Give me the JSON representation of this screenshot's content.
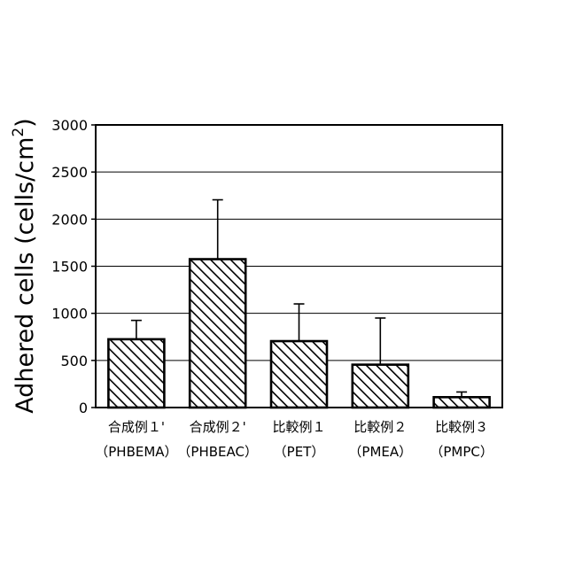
{
  "chart_data": {
    "type": "bar",
    "title": "",
    "xlabel": "",
    "ylabel": "Adhered cells (cells/cm²)",
    "ylabel_main": "Adhered cells (cells/cm",
    "ylabel_sup": "2",
    "ylabel_tail": ")",
    "ylim": [
      0,
      3000
    ],
    "yticks": [
      "0",
      "500",
      "1000",
      "1500",
      "2000",
      "2500",
      "3000"
    ],
    "ytick_values": [
      0,
      500,
      1000,
      1500,
      2000,
      2500,
      3000
    ],
    "grid": true,
    "categories": [
      {
        "line1": "合成例１'",
        "line2": "（PHBEMA）"
      },
      {
        "line1": "合成例２'",
        "line2": "（PHBEAC）"
      },
      {
        "line1": "比較例１",
        "line2": "（PET）"
      },
      {
        "line1": "比較例２",
        "line2": "（PMEA）"
      },
      {
        "line1": "比較例３",
        "line2": "（PMPC）"
      }
    ],
    "values": [
      725,
      1575,
      705,
      455,
      110
    ],
    "error_upper": [
      925,
      2205,
      1100,
      950,
      165
    ],
    "bar_pattern": "diagonal-hatch",
    "colors": {
      "bar_fill": "#ffffff",
      "hatch": "#000000",
      "axis": "#000000",
      "grid": "#000000"
    }
  }
}
